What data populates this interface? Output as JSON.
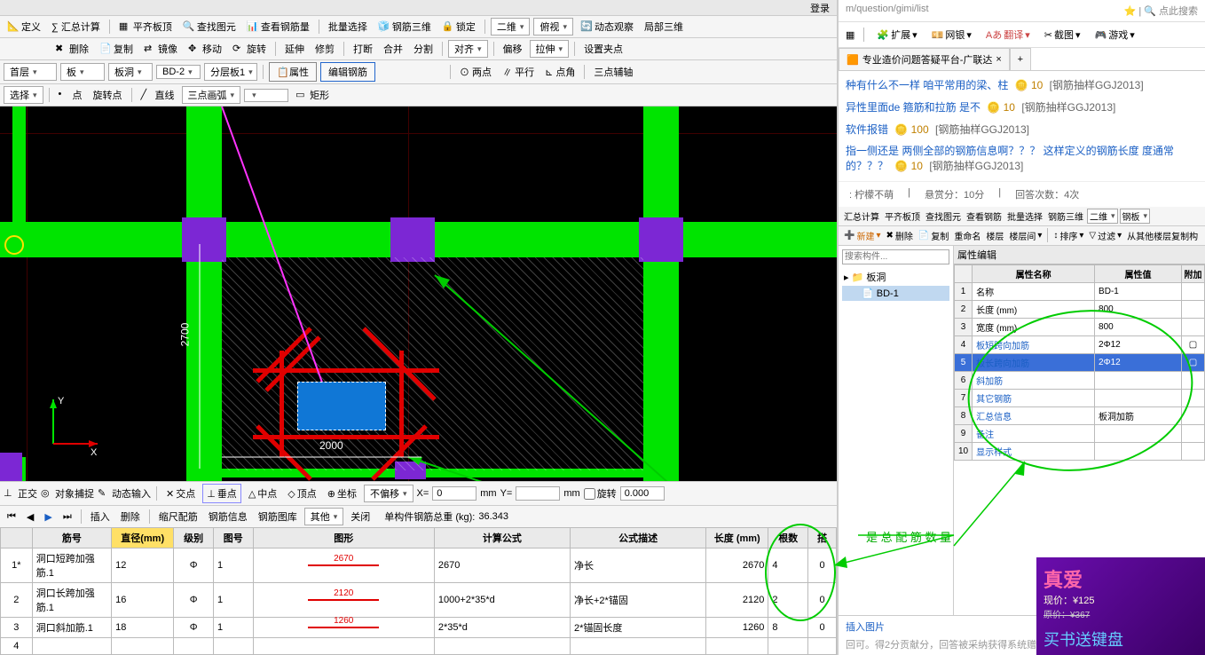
{
  "menus": {
    "login": "登录"
  },
  "tb1": {
    "define": "定义",
    "sum": "∑ 汇总计算",
    "align": "平齐板顶",
    "find": "查找图元",
    "rebar": "查看钢筋量",
    "batch": "批量选择",
    "three": "钢筋三维",
    "lock": "锁定",
    "two_d": "二维",
    "top": "俯视",
    "dyn": "动态观察",
    "local": "局部三维"
  },
  "tb2": {
    "del": "删除",
    "copy": "复制",
    "mirror": "镜像",
    "move": "移动",
    "rotate": "旋转",
    "extend": "延伸",
    "trim": "修剪",
    "break": "打断",
    "merge": "合并",
    "split": "分割",
    "align": "对齐",
    "offset": "偏移",
    "stretch": "拉伸",
    "grip": "设置夹点"
  },
  "tb3": {
    "floor": "首层",
    "cat": "板",
    "sub": "板洞",
    "member": "BD-2",
    "layer": "分层板1",
    "prop": "属性",
    "edit": "编辑钢筋"
  },
  "tb4": {
    "select": "选择",
    "point": "点",
    "rot": "旋转点",
    "line": "直线",
    "poly": "三点画弧",
    "rect": "矩形"
  },
  "snap_bar": {
    "ortho": "正交",
    "osnap": "对象捕捉",
    "dyn": "动态输入",
    "inter": "交点",
    "perp": "垂点",
    "mid": "中点",
    "vert": "顶点",
    "coord": "坐标",
    "no_offset": "不偏移",
    "x": "X=",
    "xval": "0",
    "y": "Y=",
    "yval": "",
    "rotate": "旋转",
    "rotval": "0.000"
  },
  "info_bar": {
    "insert": "插入",
    "del": "删除",
    "scale": "缩尺配筋",
    "info": "钢筋信息",
    "lib": "钢筋图库",
    "other": "其他",
    "close": "关闭",
    "total_label": "单构件钢筋总重 (kg):",
    "total": "36.343"
  },
  "table": {
    "headers": {
      "idx": "",
      "name": "筋号",
      "dia": "直径(mm)",
      "grade": "级别",
      "mark": "图号",
      "shape": "图形",
      "formula": "计算公式",
      "desc": "公式描述",
      "len": "长度 (mm)",
      "count": "根数",
      "lap": "搭"
    },
    "rows": [
      {
        "idx": "1*",
        "name": "洞口短跨加强筋.1",
        "dia": "12",
        "grade": "Φ",
        "mark": "1",
        "shape_val": "2670",
        "formula": "2670",
        "desc": "净长",
        "len": "2670",
        "count": "4",
        "lap": "0"
      },
      {
        "idx": "2",
        "name": "洞口长跨加强筋.1",
        "dia": "16",
        "grade": "Φ",
        "mark": "1",
        "shape_val": "2120",
        "formula": "1000+2*35*d",
        "desc": "净长+2*锚固",
        "len": "2120",
        "count": "2",
        "lap": "0"
      },
      {
        "idx": "3",
        "name": "洞口斜加筋.1",
        "dia": "18",
        "grade": "Φ",
        "mark": "1",
        "shape_val": "1260",
        "formula": "2*35*d",
        "desc": "2*锚固长度",
        "len": "1260",
        "count": "8",
        "lap": "0"
      },
      {
        "idx": "4",
        "name": "",
        "dia": "",
        "grade": "",
        "mark": "",
        "shape_val": "",
        "formula": "",
        "desc": "",
        "len": "",
        "count": "",
        "lap": ""
      }
    ]
  },
  "canvas": {
    "dim_v": "2700",
    "dim_h": "2000",
    "green": "#00e400",
    "purple": "#7c27d4",
    "red": "#e00000",
    "blue": "#1077d6"
  },
  "browser": {
    "url": "m/question/gimi/list",
    "search_ph": "点此搜索",
    "ext": {
      "ext": "扩展",
      "wallet": "网银",
      "trans": "翻译",
      "shot": "截图",
      "game": "游戏"
    },
    "tab": "专业造价问题答疑平台-广联达",
    "qa": [
      {
        "text": "种有什么不一样 咱平常用的梁、柱",
        "pts": "10",
        "tag": "[钢筋抽样GGJ2013]"
      },
      {
        "text": "异性里面de 箍筋和拉筋 是不",
        "pts": "10",
        "tag": "[钢筋抽样GGJ2013]"
      },
      {
        "text": "软件报错",
        "pts": "100",
        "tag": "[钢筋抽样GGJ2013]"
      },
      {
        "text": "指一侧还是 两侧全部的钢筋信息啊？？？ 这样定义的钢筋长度 度通常的？？？",
        "pts": "10",
        "tag": "[钢筋抽样GGJ2013]"
      }
    ],
    "meta": {
      "user": ": 柠檬不萌",
      "bounty": "悬赏分：10分",
      "answers": "回答次数：4次"
    }
  },
  "right2": {
    "tb1": {
      "sum": "汇总计算",
      "align": "平齐板顶",
      "find": "查找图元",
      "rebar": "查看钢筋",
      "batch": "批量选择",
      "three": "钢筋三维",
      "two": "二维",
      "top": "钢板"
    },
    "tb2": {
      "new": "新建",
      "del": "删除",
      "copy": "复制",
      "rename": "重命名",
      "floor": "楼层",
      "between": "楼层间",
      "sort": "排序",
      "filter": "过滤",
      "from": "从其他楼层复制构"
    },
    "search_ph": "搜索构件...",
    "tree": {
      "root": "板洞",
      "child": "BD-1"
    },
    "prop_title": "属性编辑",
    "prop_headers": {
      "name": "属性名称",
      "val": "属性值",
      "extra": "附加"
    },
    "props": [
      {
        "n": "名称",
        "v": "BD-1"
      },
      {
        "n": "长度 (mm)",
        "v": "800"
      },
      {
        "n": "宽度 (mm)",
        "v": "800"
      },
      {
        "n": "板短跨向加筋",
        "v": "2Φ12"
      },
      {
        "n": "板长跨向加筋",
        "v": "2Φ12",
        "hl": true
      },
      {
        "n": "斜加筋",
        "v": ""
      },
      {
        "n": "其它钢筋",
        "v": ""
      },
      {
        "n": "汇总信息",
        "v": "板洞加筋"
      },
      {
        "n": "备注",
        "v": ""
      },
      {
        "n": "显示样式",
        "v": ""
      }
    ]
  },
  "answer": {
    "insert": "插入图片",
    "hint": "回可。得2分贡献分，回答被采纳获得系统赠送20贡献分及提问者悬赏分..."
  },
  "annot": "是 总 配 筋 数 量",
  "ad": {
    "title": "真爱",
    "price": "现价：¥125",
    "orig": "原价：¥367",
    "slogan": "买书送键盘"
  }
}
